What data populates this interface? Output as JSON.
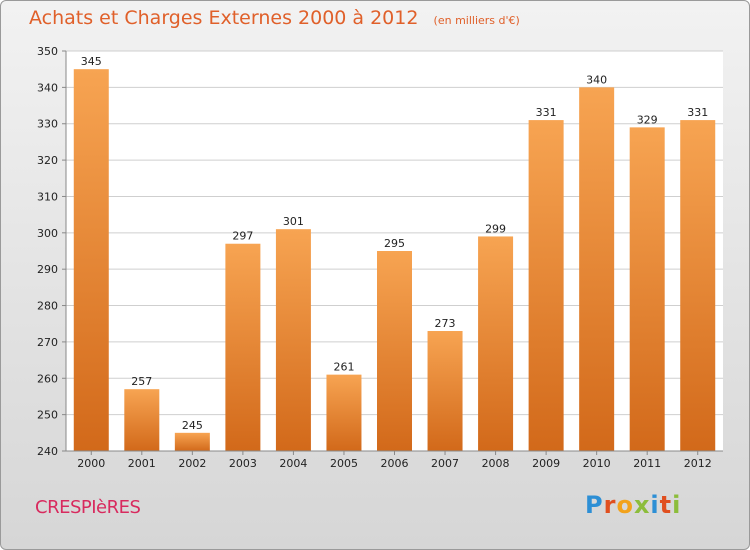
{
  "header": {
    "title": "Achats et Charges Externes 2000 à 2012",
    "subtitle": "(en milliers d'€)"
  },
  "footer": {
    "place": "CRESPIèRES",
    "brand_letters": [
      {
        "char": "P",
        "color": "#2d8fd5"
      },
      {
        "char": "r",
        "color": "#e04f1f"
      },
      {
        "char": "o",
        "color": "#f2a21b"
      },
      {
        "char": "x",
        "color": "#8cbd3b"
      },
      {
        "char": "i",
        "color": "#2d8fd5"
      },
      {
        "char": "t",
        "color": "#e04f1f"
      },
      {
        "char": "i",
        "color": "#8cbd3b"
      }
    ]
  },
  "colors": {
    "bar_top": "#f7a452",
    "bar_bottom": "#d2691a",
    "grid": "#cfcfcf",
    "plot_bg": "#ffffff"
  },
  "chart_data": {
    "type": "bar",
    "categories": [
      "2000",
      "2001",
      "2002",
      "2003",
      "2004",
      "2005",
      "2006",
      "2007",
      "2008",
      "2009",
      "2010",
      "2011",
      "2012"
    ],
    "values": [
      345,
      257,
      245,
      297,
      301,
      261,
      295,
      273,
      299,
      331,
      340,
      329,
      331
    ],
    "title": "Achats et Charges Externes 2000 à 2012",
    "subtitle": "(en milliers d'€)",
    "xlabel": "",
    "ylabel": "",
    "ylim": [
      240,
      350
    ],
    "yticks": [
      240,
      250,
      260,
      270,
      280,
      290,
      300,
      310,
      320,
      330,
      340,
      350
    ],
    "grid": true,
    "data_labels": true
  }
}
